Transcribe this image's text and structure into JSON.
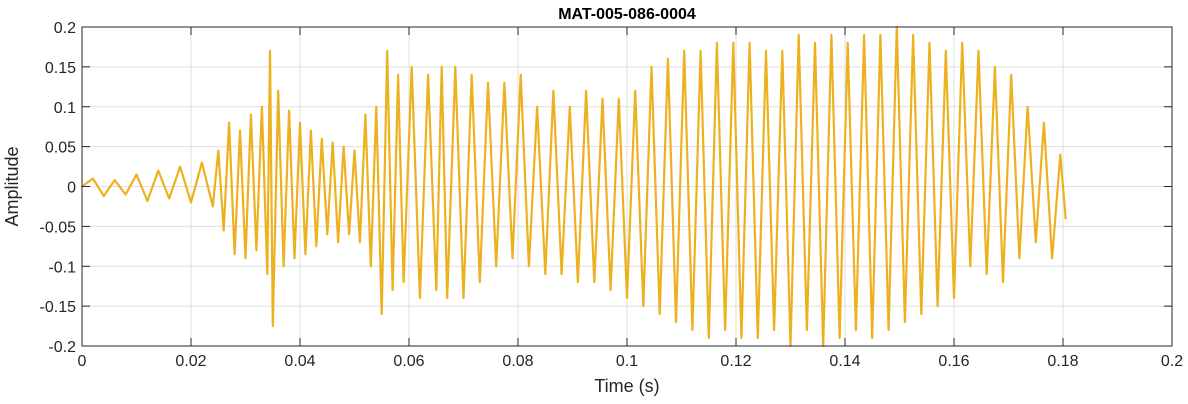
{
  "chart_data": {
    "type": "line",
    "title": "MAT-005-086-0004",
    "xlabel": "Time (s)",
    "ylabel": "Amplitude",
    "xlim": [
      0,
      0.2
    ],
    "ylim": [
      -0.2,
      0.2
    ],
    "grid": true,
    "color": "#EDB120",
    "x_ticks": [
      0,
      0.02,
      0.04,
      0.06,
      0.08,
      0.1,
      0.12,
      0.14,
      0.16,
      0.18,
      0.2
    ],
    "x_tick_labels": [
      "0",
      "0.02",
      "0.04",
      "0.06",
      "0.08",
      "0.1",
      "0.12",
      "0.14",
      "0.16",
      "0.18",
      "0.2"
    ],
    "y_ticks": [
      -0.2,
      -0.15,
      -0.1,
      -0.05,
      0,
      0.05,
      0.1,
      0.15,
      0.2
    ],
    "y_tick_labels": [
      "-0.2",
      "-0.15",
      "-0.1",
      "-0.05",
      "0",
      "0.05",
      "0.1",
      "0.15",
      "0.2"
    ],
    "series": [
      {
        "x": [
          0,
          0.002,
          0.004,
          0.006,
          0.008,
          0.01,
          0.012,
          0.014,
          0.016,
          0.018,
          0.02,
          0.022,
          0.024,
          0.025,
          0.026,
          0.027,
          0.028,
          0.029,
          0.03,
          0.031,
          0.032,
          0.033,
          0.034,
          0.0345,
          0.035,
          0.036,
          0.037,
          0.038,
          0.039,
          0.04,
          0.041,
          0.042,
          0.043,
          0.044,
          0.045,
          0.046,
          0.047,
          0.048,
          0.049,
          0.05,
          0.051,
          0.052,
          0.053,
          0.054,
          0.055,
          0.056,
          0.057,
          0.058,
          0.059,
          0.0605,
          0.062,
          0.0635,
          0.065,
          0.066,
          0.067,
          0.0685,
          0.07,
          0.0715,
          0.073,
          0.0745,
          0.076,
          0.0775,
          0.079,
          0.0805,
          0.082,
          0.0835,
          0.085,
          0.0865,
          0.088,
          0.0895,
          0.091,
          0.0925,
          0.094,
          0.0955,
          0.097,
          0.0985,
          0.1,
          0.1015,
          0.103,
          0.1045,
          0.106,
          0.1075,
          0.109,
          0.1105,
          0.112,
          0.1135,
          0.115,
          0.1165,
          0.118,
          0.1195,
          0.121,
          0.1225,
          0.124,
          0.1255,
          0.127,
          0.1285,
          0.13,
          0.1315,
          0.133,
          0.1345,
          0.136,
          0.1375,
          0.139,
          0.1405,
          0.142,
          0.1435,
          0.145,
          0.1465,
          0.148,
          0.1495,
          0.151,
          0.1525,
          0.154,
          0.1555,
          0.157,
          0.1585,
          0.16,
          0.1615,
          0.163,
          0.1645,
          0.166,
          0.1675,
          0.169,
          0.1705,
          0.172,
          0.1735,
          0.175,
          0.1765,
          0.178,
          0.1795,
          0.1805
        ],
        "y": [
          0,
          0.01,
          -0.012,
          0.008,
          -0.01,
          0.015,
          -0.018,
          0.02,
          -0.015,
          0.025,
          -0.02,
          0.03,
          -0.025,
          0.045,
          -0.055,
          0.08,
          -0.085,
          0.07,
          -0.09,
          0.09,
          -0.08,
          0.1,
          -0.11,
          0.17,
          -0.175,
          0.12,
          -0.1,
          0.095,
          -0.09,
          0.08,
          -0.085,
          0.07,
          -0.075,
          0.06,
          -0.06,
          0.055,
          -0.07,
          0.05,
          -0.06,
          0.045,
          -0.07,
          0.09,
          -0.1,
          0.1,
          -0.16,
          0.17,
          -0.13,
          0.14,
          -0.12,
          0.15,
          -0.14,
          0.14,
          -0.13,
          0.15,
          -0.14,
          0.15,
          -0.14,
          0.14,
          -0.12,
          0.13,
          -0.1,
          0.13,
          -0.09,
          0.14,
          -0.1,
          0.1,
          -0.11,
          0.12,
          -0.11,
          0.1,
          -0.12,
          0.12,
          -0.12,
          0.11,
          -0.13,
          0.11,
          -0.14,
          0.12,
          -0.15,
          0.15,
          -0.16,
          0.16,
          -0.17,
          0.17,
          -0.18,
          0.17,
          -0.19,
          0.18,
          -0.18,
          0.18,
          -0.19,
          0.18,
          -0.19,
          0.17,
          -0.18,
          0.17,
          -0.2,
          0.19,
          -0.18,
          0.18,
          -0.2,
          0.19,
          -0.19,
          0.18,
          -0.18,
          0.19,
          -0.19,
          0.19,
          -0.18,
          0.2,
          -0.17,
          0.19,
          -0.16,
          0.18,
          -0.15,
          0.17,
          -0.14,
          0.18,
          -0.1,
          0.17,
          -0.11,
          0.15,
          -0.12,
          0.14,
          -0.09,
          0.1,
          -0.07,
          0.08,
          -0.09,
          0.04,
          -0.04
        ]
      }
    ]
  }
}
